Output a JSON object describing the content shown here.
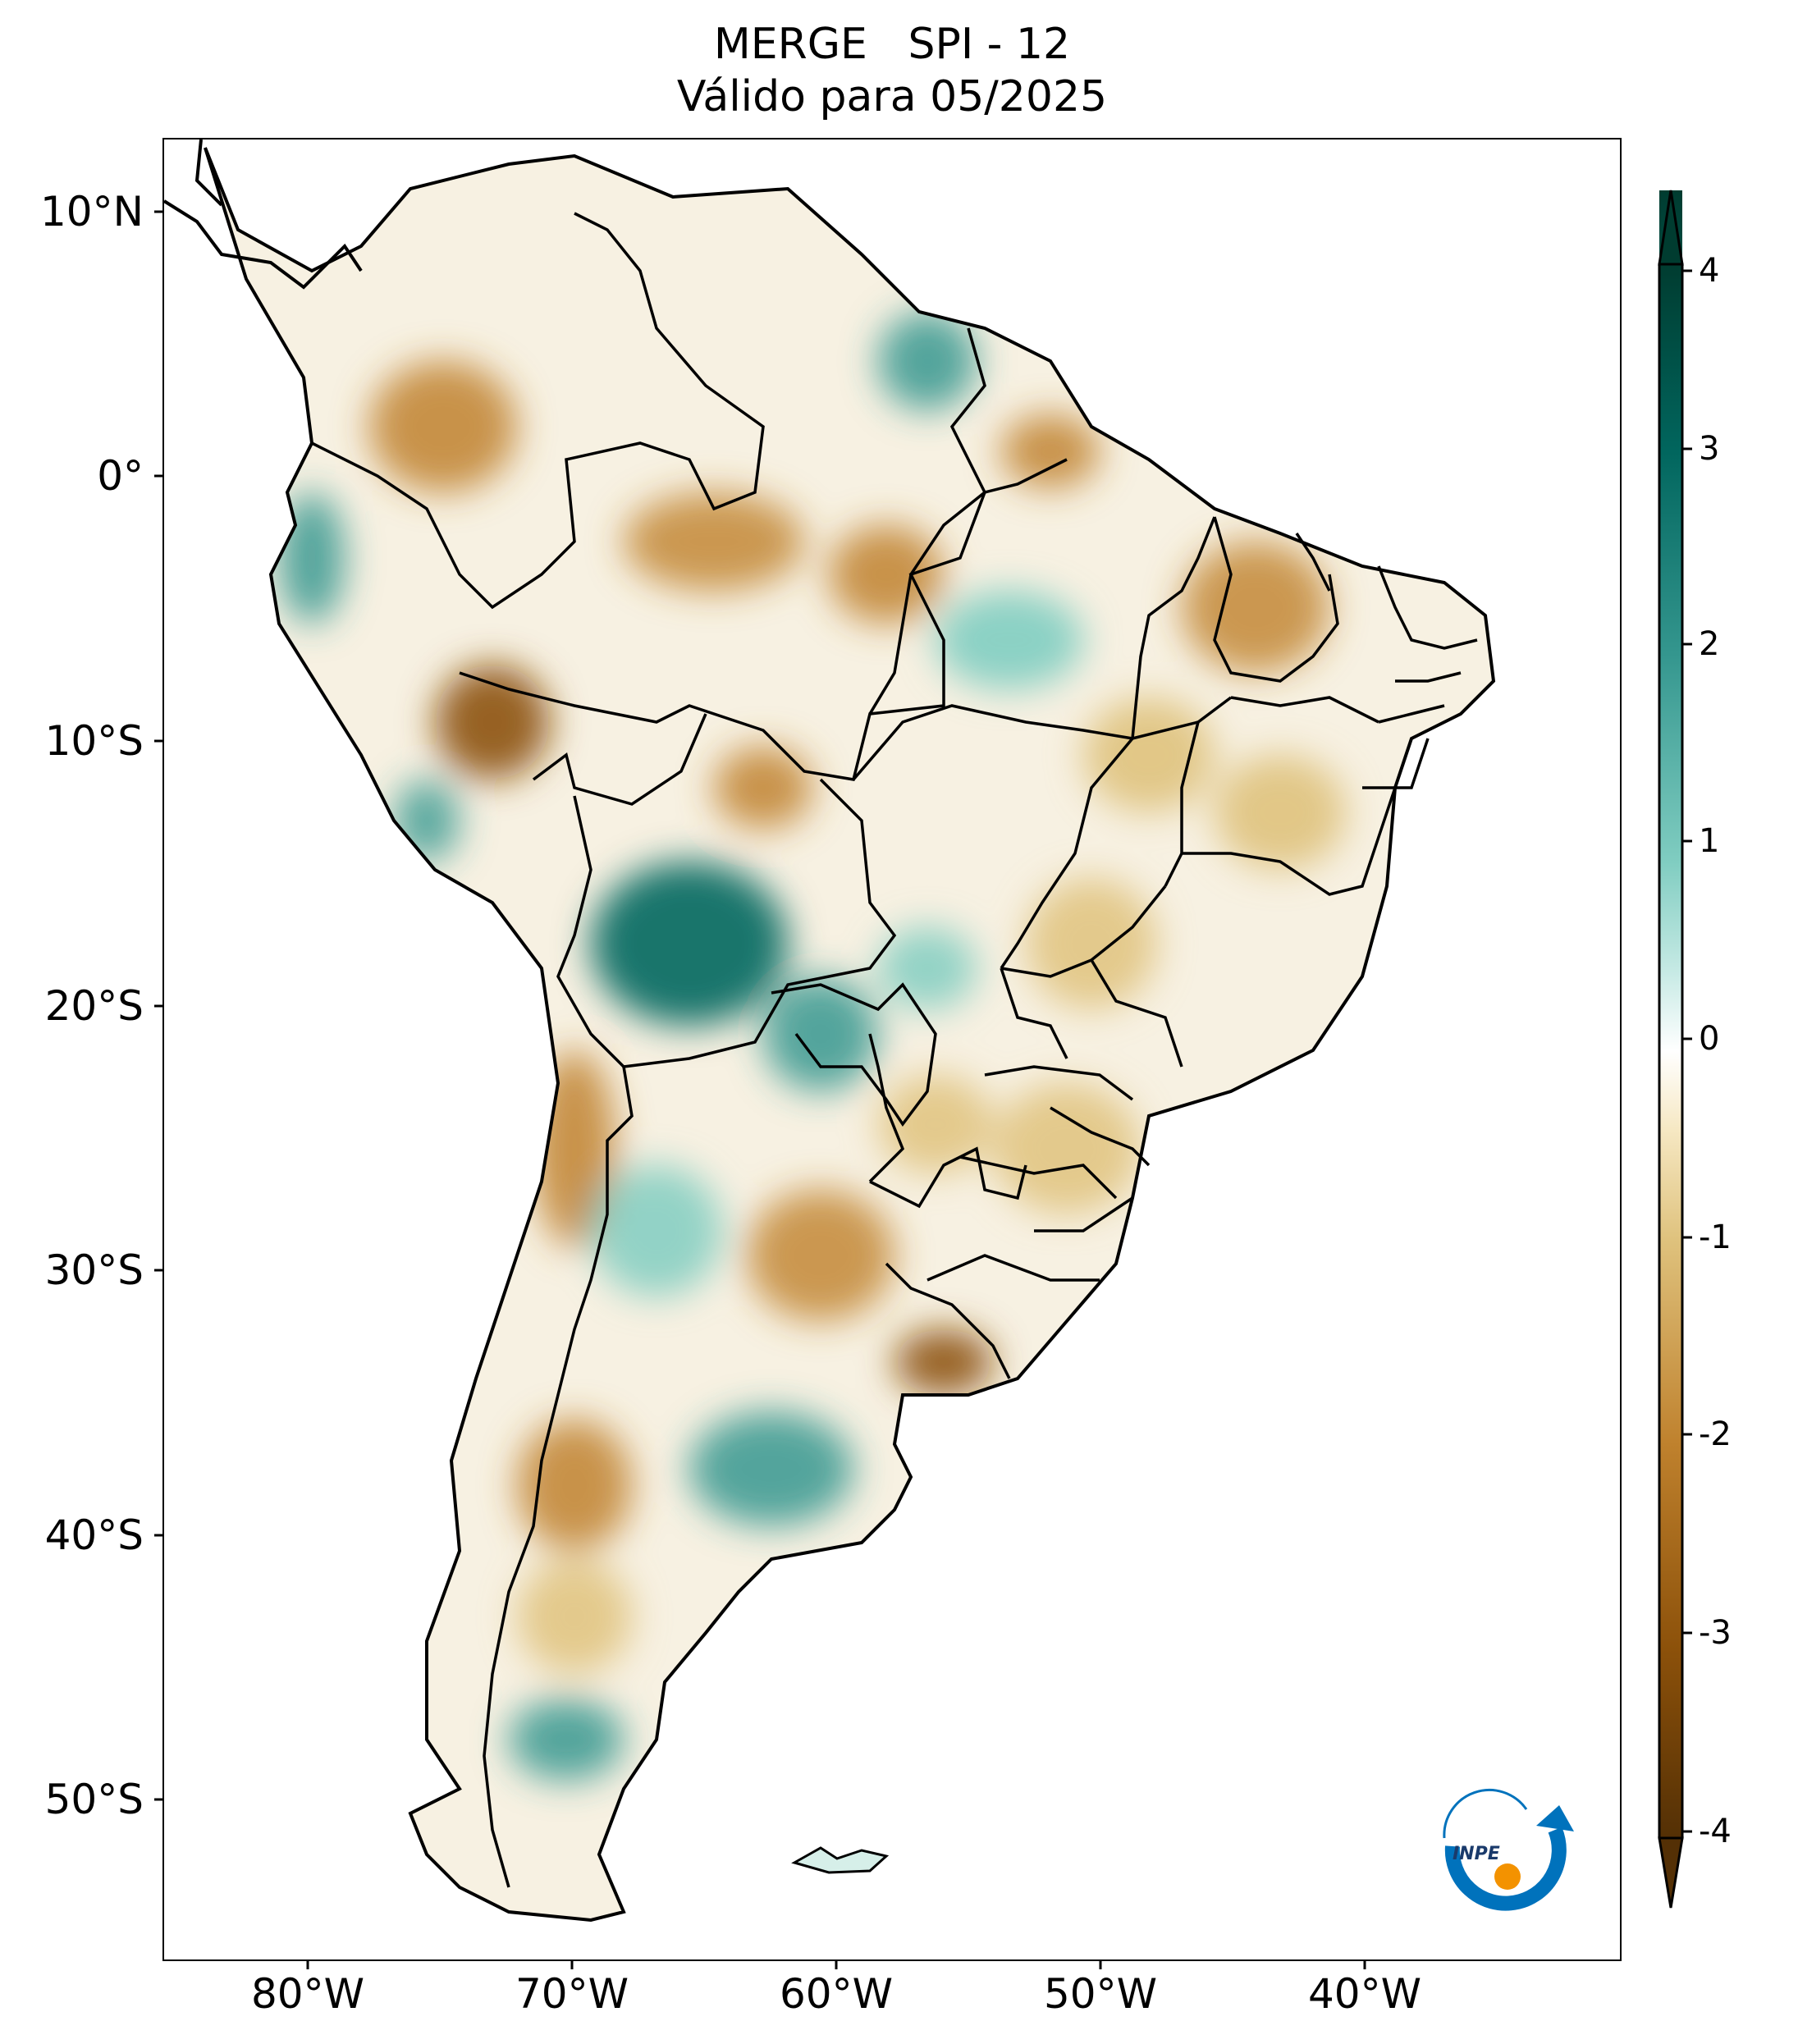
{
  "title": {
    "line1": "MERGE   SPI - 12",
    "line2": "Válido para 05/2025"
  },
  "latitude_labels": [
    "10°N",
    "0°",
    "10°S",
    "20°S",
    "30°S",
    "40°S",
    "50°S"
  ],
  "longitude_labels": [
    "80°W",
    "70°W",
    "60°W",
    "50°W",
    "40°W"
  ],
  "colorbar": {
    "min": -4,
    "max": 4,
    "tick_labels": [
      "4",
      "3",
      "2",
      "1",
      "0",
      "-1",
      "-2",
      "-3",
      "-4"
    ],
    "colors": {
      "very_wet": "#003c30",
      "wet": "#35978f",
      "moist": "#c7eae5",
      "neutral": "#f5f5f5",
      "dry": "#f6e8c3",
      "drier": "#bf812d",
      "very_dry": "#543005"
    }
  },
  "logo": {
    "text": "INPE",
    "colors": {
      "arc": "#0072bc",
      "dot": "#f39200"
    }
  }
}
